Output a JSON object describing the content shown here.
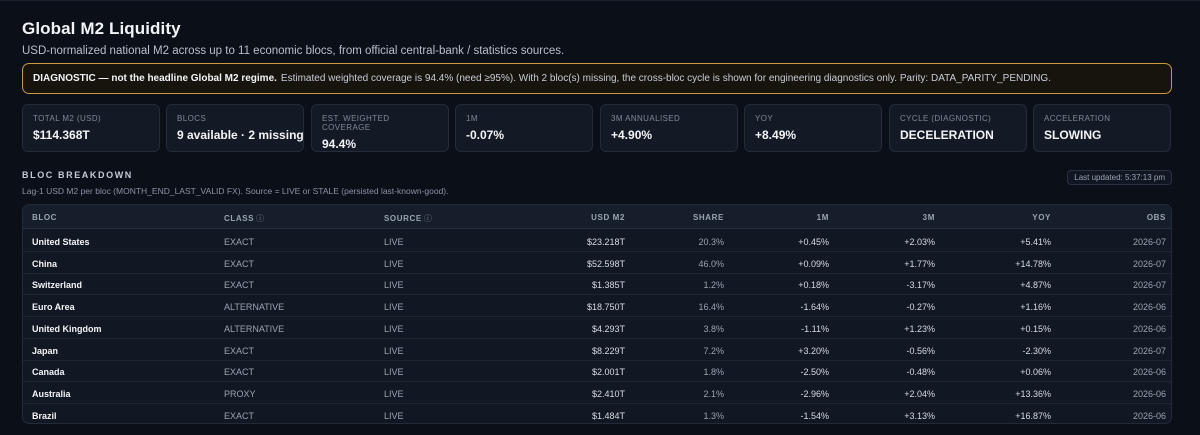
{
  "header": {
    "title": "Global M2 Liquidity",
    "subtitle": "USD-normalized national M2 across up to 11 economic blocs, from official central-bank / statistics sources."
  },
  "diagnostic": {
    "strong": "DIAGNOSTIC — not the headline Global M2 regime.",
    "text": "Estimated weighted coverage is 94.4% (need ≥95%). With 2 bloc(s) missing, the cross-bloc cycle is shown for engineering diagnostics only. Parity: DATA_PARITY_PENDING.",
    "border_color": "#c79a3a"
  },
  "stats": [
    {
      "label": "TOTAL M2 (USD)",
      "value": "$114.368T"
    },
    {
      "label": "BLOCS",
      "value": "9 available · 2 missing"
    },
    {
      "label": "EST. WEIGHTED COVERAGE",
      "value": "94.4%"
    },
    {
      "label": "1M",
      "value": "-0.07%"
    },
    {
      "label": "3M ANNUALISED",
      "value": "+4.90%"
    },
    {
      "label": "YOY",
      "value": "+8.49%"
    },
    {
      "label": "CYCLE (DIAGNOSTIC)",
      "value": "DECELERATION"
    },
    {
      "label": "ACCELERATION",
      "value": "SLOWING"
    }
  ],
  "breakdown": {
    "title": "BLOC BREAKDOWN",
    "subtitle": "Lag-1 USD M2 per bloc (MONTH_END_LAST_VALID FX). Source = LIVE or STALE (persisted last-known-good).",
    "updated": "Last updated: 5:37:13 pm",
    "info_icon": "ⓘ",
    "columns": {
      "bloc": "BLOC",
      "class": "CLASS",
      "source": "SOURCE",
      "usd": "USD M2",
      "share": "SHARE",
      "m1": "1M",
      "m3": "3M",
      "yoy": "YOY",
      "obs": "OBS"
    },
    "rows": [
      {
        "bloc": "United States",
        "class": "EXACT",
        "source": "LIVE",
        "usd": "$23.218T",
        "share": "20.3%",
        "m1": "+0.45%",
        "m3": "+2.03%",
        "yoy": "+5.41%",
        "obs": "2026-07"
      },
      {
        "bloc": "China",
        "class": "EXACT",
        "source": "LIVE",
        "usd": "$52.598T",
        "share": "46.0%",
        "m1": "+0.09%",
        "m3": "+1.77%",
        "yoy": "+14.78%",
        "obs": "2026-07"
      },
      {
        "bloc": "Switzerland",
        "class": "EXACT",
        "source": "LIVE",
        "usd": "$1.385T",
        "share": "1.2%",
        "m1": "+0.18%",
        "m3": "-3.17%",
        "yoy": "+4.87%",
        "obs": "2026-07"
      },
      {
        "bloc": "Euro Area",
        "class": "ALTERNATIVE",
        "source": "LIVE",
        "usd": "$18.750T",
        "share": "16.4%",
        "m1": "-1.64%",
        "m3": "-0.27%",
        "yoy": "+1.16%",
        "obs": "2026-06"
      },
      {
        "bloc": "United Kingdom",
        "class": "ALTERNATIVE",
        "source": "LIVE",
        "usd": "$4.293T",
        "share": "3.8%",
        "m1": "-1.11%",
        "m3": "+1.23%",
        "yoy": "+0.15%",
        "obs": "2026-06"
      },
      {
        "bloc": "Japan",
        "class": "EXACT",
        "source": "LIVE",
        "usd": "$8.229T",
        "share": "7.2%",
        "m1": "+3.20%",
        "m3": "-0.56%",
        "yoy": "-2.30%",
        "obs": "2026-07"
      },
      {
        "bloc": "Canada",
        "class": "EXACT",
        "source": "LIVE",
        "usd": "$2.001T",
        "share": "1.8%",
        "m1": "-2.50%",
        "m3": "-0.48%",
        "yoy": "+0.06%",
        "obs": "2026-06"
      },
      {
        "bloc": "Australia",
        "class": "PROXY",
        "source": "LIVE",
        "usd": "$2.410T",
        "share": "2.1%",
        "m1": "-2.96%",
        "m3": "+2.04%",
        "yoy": "+13.36%",
        "obs": "2026-06"
      },
      {
        "bloc": "Brazil",
        "class": "EXACT",
        "source": "LIVE",
        "usd": "$1.484T",
        "share": "1.3%",
        "m1": "-1.54%",
        "m3": "+3.13%",
        "yoy": "+16.87%",
        "obs": "2026-06"
      }
    ]
  }
}
